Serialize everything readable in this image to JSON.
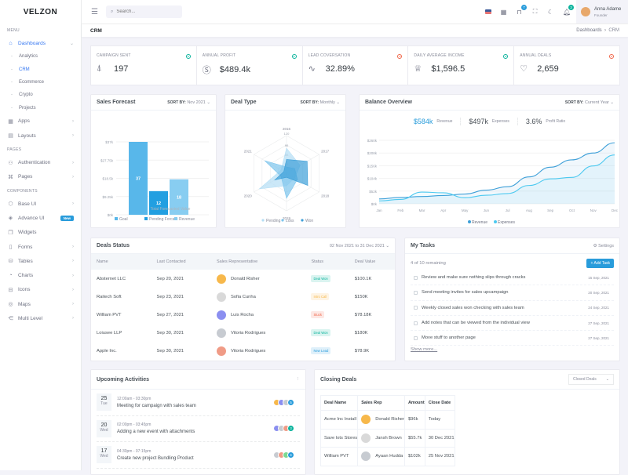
{
  "brand": "velzon",
  "sidebar": {
    "menu_title": "MENU",
    "pages_title": "PAGES",
    "components_title": "COMPONENTS",
    "dashboards": {
      "label": "Dashboards",
      "icon": "home-icon",
      "children": [
        "Analytics",
        "CRM",
        "Ecommerce",
        "Crypto",
        "Projects"
      ],
      "active_child": "CRM"
    },
    "menu_items": [
      {
        "label": "Apps",
        "icon": "grid-icon"
      },
      {
        "label": "Layouts",
        "icon": "layout-icon"
      }
    ],
    "pages_items": [
      {
        "label": "Authentication",
        "icon": "users-icon"
      },
      {
        "label": "Pages",
        "icon": "command-icon"
      }
    ],
    "component_items": [
      {
        "label": "Base UI",
        "icon": "cube-icon",
        "chevron": true
      },
      {
        "label": "Advance UI",
        "icon": "layers-icon",
        "badge": "New"
      },
      {
        "label": "Widgets",
        "icon": "widgets-icon"
      },
      {
        "label": "Forms",
        "icon": "file-icon",
        "chevron": true
      },
      {
        "label": "Tables",
        "icon": "database-icon",
        "chevron": true
      },
      {
        "label": "Charts",
        "icon": "pie-chart-icon",
        "chevron": true
      },
      {
        "label": "Icons",
        "icon": "archive-icon",
        "chevron": true
      },
      {
        "label": "Maps",
        "icon": "map-pin-icon",
        "chevron": true
      },
      {
        "label": "Multi Level",
        "icon": "share-icon",
        "chevron": true
      }
    ]
  },
  "topbar": {
    "search_placeholder": "Search...",
    "cart_badge": "7",
    "notif_badge": "3",
    "user_name": "Anna Adame",
    "user_role": "Founder"
  },
  "breadcrumb": {
    "title": "CRM",
    "items": [
      "Dashboards",
      "CRM"
    ]
  },
  "kpis": [
    {
      "label": "CAMPAIGN SENT",
      "value": "197",
      "icon": "space-ship-icon",
      "trend": "up"
    },
    {
      "label": "ANNUAL PROFIT",
      "value": "$489.4k",
      "icon": "exchange-dollar-icon",
      "trend": "up"
    },
    {
      "label": "LEAD COVERSATION",
      "value": "32.89%",
      "icon": "pulse-icon",
      "trend": "down"
    },
    {
      "label": "DAILY AVERAGE INCOME",
      "value": "$1,596.5",
      "icon": "trophy-icon",
      "trend": "up"
    },
    {
      "label": "ANNUAL DEALS",
      "value": "2,659",
      "icon": "service-icon",
      "trend": "down"
    }
  ],
  "colors": {
    "up": "#0ab39c",
    "down": "#f06548",
    "primary": "#299cdb",
    "accent": "#3577f1"
  },
  "sales_forecast": {
    "title": "Sales Forecast",
    "sort_label": "SORT BY:",
    "sort_value": "Nov 2021"
  },
  "deal_type": {
    "title": "Deal Type",
    "sort_label": "SORT BY:",
    "sort_value": "Monthly"
  },
  "balance": {
    "title": "Balance Overview",
    "sort_label": "SORT BY:",
    "sort_value": "Current Year",
    "stats": [
      {
        "value": "$584k",
        "label": "Revenue"
      },
      {
        "value": "$497k",
        "label": "Expenses"
      },
      {
        "value": "3.6%",
        "label": "Profit Ratio"
      }
    ]
  },
  "chart_data": [
    {
      "type": "bar",
      "title": "",
      "xlabel": "Total Forecasted Value",
      "ylabel": "",
      "ylim": [
        0,
        37
      ],
      "yticks": [
        "$0k",
        "$9.25k",
        "$18.5k",
        "$27.75k",
        "$37k"
      ],
      "series": [
        {
          "name": "Goal",
          "values": [
            37
          ],
          "color": "#58b7ea"
        },
        {
          "name": "Pending Forcast",
          "values": [
            12
          ],
          "color": "#229fe1"
        },
        {
          "name": "Revenue",
          "values": [
            18
          ],
          "color": "#88cdf1"
        }
      ],
      "legend": "bottom",
      "grid": true
    },
    {
      "type": "radar",
      "categories": [
        "2016",
        "2017",
        "2018",
        "2019",
        "2020",
        "2021"
      ],
      "rticks": [
        "0",
        "30",
        "60",
        "90",
        "120"
      ],
      "rlim": [
        0,
        120
      ],
      "series": [
        {
          "name": "Pending",
          "values": [
            80,
            50,
            30,
            40,
            100,
            20
          ],
          "color": "#b5def5"
        },
        {
          "name": "Loss",
          "values": [
            20,
            30,
            40,
            80,
            20,
            80
          ],
          "color": "#7cc5ed"
        },
        {
          "name": "Won",
          "values": [
            44,
            76,
            78,
            13,
            43,
            10
          ],
          "color": "#3d9fd8"
        }
      ],
      "legend": "bottom"
    },
    {
      "type": "area",
      "categories": [
        "Jan",
        "Feb",
        "Mar",
        "Apr",
        "May",
        "Jun",
        "Jul",
        "Aug",
        "Sep",
        "Oct",
        "Nov",
        "Dec"
      ],
      "ylim": [
        0,
        260
      ],
      "yticks": [
        "$0k",
        "$52k",
        "$104k",
        "$156k",
        "$208k",
        "$260k"
      ],
      "series": [
        {
          "name": "Revenue",
          "values": [
            20,
            26,
            30,
            34,
            40,
            56,
            70,
            110,
            150,
            180,
            208,
            250
          ],
          "color": "#3d9fd8"
        },
        {
          "name": "Expenses",
          "values": [
            12,
            18,
            48,
            45,
            25,
            35,
            42,
            75,
            102,
            108,
            155,
            200
          ],
          "color": "#4cc9f0"
        }
      ],
      "legend": "bottom",
      "grid": true
    }
  ],
  "deals_status": {
    "title": "Deals Status",
    "range": "02 Nov 2021 to 31 Dec 2021",
    "columns": [
      "Name",
      "Last Contacted",
      "Sales Representative",
      "Status",
      "Deal Value"
    ],
    "rows": [
      {
        "name": "Absternet LLC",
        "date": "Sep 20, 2021",
        "rep": "Donald Risher",
        "status": "Deal Won",
        "value": "$100.1K",
        "sc": "#0ab39c",
        "sb": "#daf4f0",
        "av": "#f7b84b"
      },
      {
        "name": "Raitech Soft",
        "date": "Sep 23, 2021",
        "rep": "Sofia Cunha",
        "status": "Intro Call",
        "value": "$150K",
        "sc": "#f7b84b",
        "sb": "#fef4e4",
        "av": "#d9d9d9"
      },
      {
        "name": "William PVT",
        "date": "Sep 27, 2021",
        "rep": "Luis Rocha",
        "status": "Stuck",
        "value": "$78.18K",
        "sc": "#f06548",
        "sb": "#fde8e4",
        "av": "#8b8ff0"
      },
      {
        "name": "Loiusee LLP",
        "date": "Sep 30, 2021",
        "rep": "Vitoria Rodrigues",
        "status": "Deal Won",
        "value": "$180K",
        "sc": "#0ab39c",
        "sb": "#daf4f0",
        "av": "#c7cbd1"
      },
      {
        "name": "Apple Inc.",
        "date": "Sep 30, 2021",
        "rep": "Vitoria Rodrigues",
        "status": "New Lead",
        "value": "$78.9K",
        "sc": "#299cdb",
        "sb": "#dff0fa",
        "av": "#f09b86"
      }
    ]
  },
  "tasks": {
    "title": "My Tasks",
    "settings": "Settings",
    "remaining": "4 of 10 remaining",
    "add": "+ Add Task",
    "show_more": "Show more...",
    "items": [
      {
        "text": "Review and make sure nothing slips through cracks",
        "date": "15 Sep, 2021"
      },
      {
        "text": "Send meeting invites for sales upcampaign",
        "date": "20 Sep, 2021"
      },
      {
        "text": "Weekly closed sales won checking with sales team",
        "date": "24 Sep, 2021"
      },
      {
        "text": "Add notes that can be viewed from the individual view",
        "date": "27 Sep, 2021"
      },
      {
        "text": "Move stuff to another page",
        "date": "27 Sep, 2021"
      }
    ]
  },
  "activities": {
    "title": "Upcoming Activities",
    "items": [
      {
        "day": "25",
        "wd": "Tue",
        "time": "12:00am - 03:30pm",
        "title": "Meeting for campaign with sales team",
        "count": "5",
        "cc": "#299cdb"
      },
      {
        "day": "20",
        "wd": "Wed",
        "time": "02:00pm - 03:45pm",
        "title": "Adding a new event with attachments",
        "count": "3",
        "cc": "#0ab39c"
      },
      {
        "day": "17",
        "wd": "Wed",
        "time": "04:30pm - 07:15pm",
        "title": "Create new project Bundling Product",
        "count": "4",
        "cc": "#299cdb"
      }
    ]
  },
  "closing": {
    "title": "Closing Deals",
    "filter": "Closed Deals",
    "columns": [
      "Deal Name",
      "Sales Rep",
      "Amount",
      "Close Date"
    ],
    "rows": [
      {
        "name": "Acme Inc Install",
        "rep": "Donald Risher",
        "amount": "$96k",
        "date": "Today",
        "av": "#f7b84b"
      },
      {
        "name": "Save lots Stores",
        "rep": "Jansh Brown",
        "amount": "$55.7k",
        "date": "30 Dec 2021",
        "av": "#d9d9d9"
      },
      {
        "name": "William PVT",
        "rep": "Ayaan Hudda",
        "amount": "$102k",
        "date": "25 Nov 2021",
        "av": "#c7cbd1"
      }
    ]
  }
}
